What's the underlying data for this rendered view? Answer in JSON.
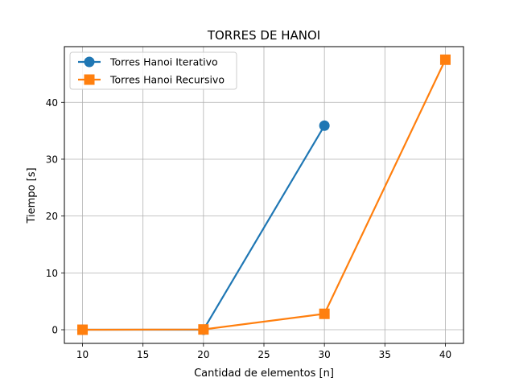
{
  "chart_data": {
    "type": "line",
    "title": "TORRES DE HANOI",
    "xlabel": "Cantidad de elementos [n]",
    "ylabel": "Tiempo [s]",
    "xlim": [
      8.5,
      41.5
    ],
    "ylim": [
      -2.4,
      49.8
    ],
    "xticks": [
      10,
      15,
      20,
      25,
      30,
      35,
      40
    ],
    "yticks": [
      0,
      10,
      20,
      30,
      40
    ],
    "grid": true,
    "legend_position": "top-left",
    "series": [
      {
        "name": "Torres Hanoi Iterativo",
        "marker": "circle",
        "color": "#1f77b4",
        "x": [
          10,
          20,
          30
        ],
        "y": [
          0.0,
          0.0,
          35.9
        ]
      },
      {
        "name": "Torres Hanoi Recursivo",
        "marker": "square",
        "color": "#ff7f0e",
        "x": [
          10,
          20,
          30,
          40
        ],
        "y": [
          0.0,
          0.05,
          2.8,
          47.5
        ]
      }
    ]
  }
}
